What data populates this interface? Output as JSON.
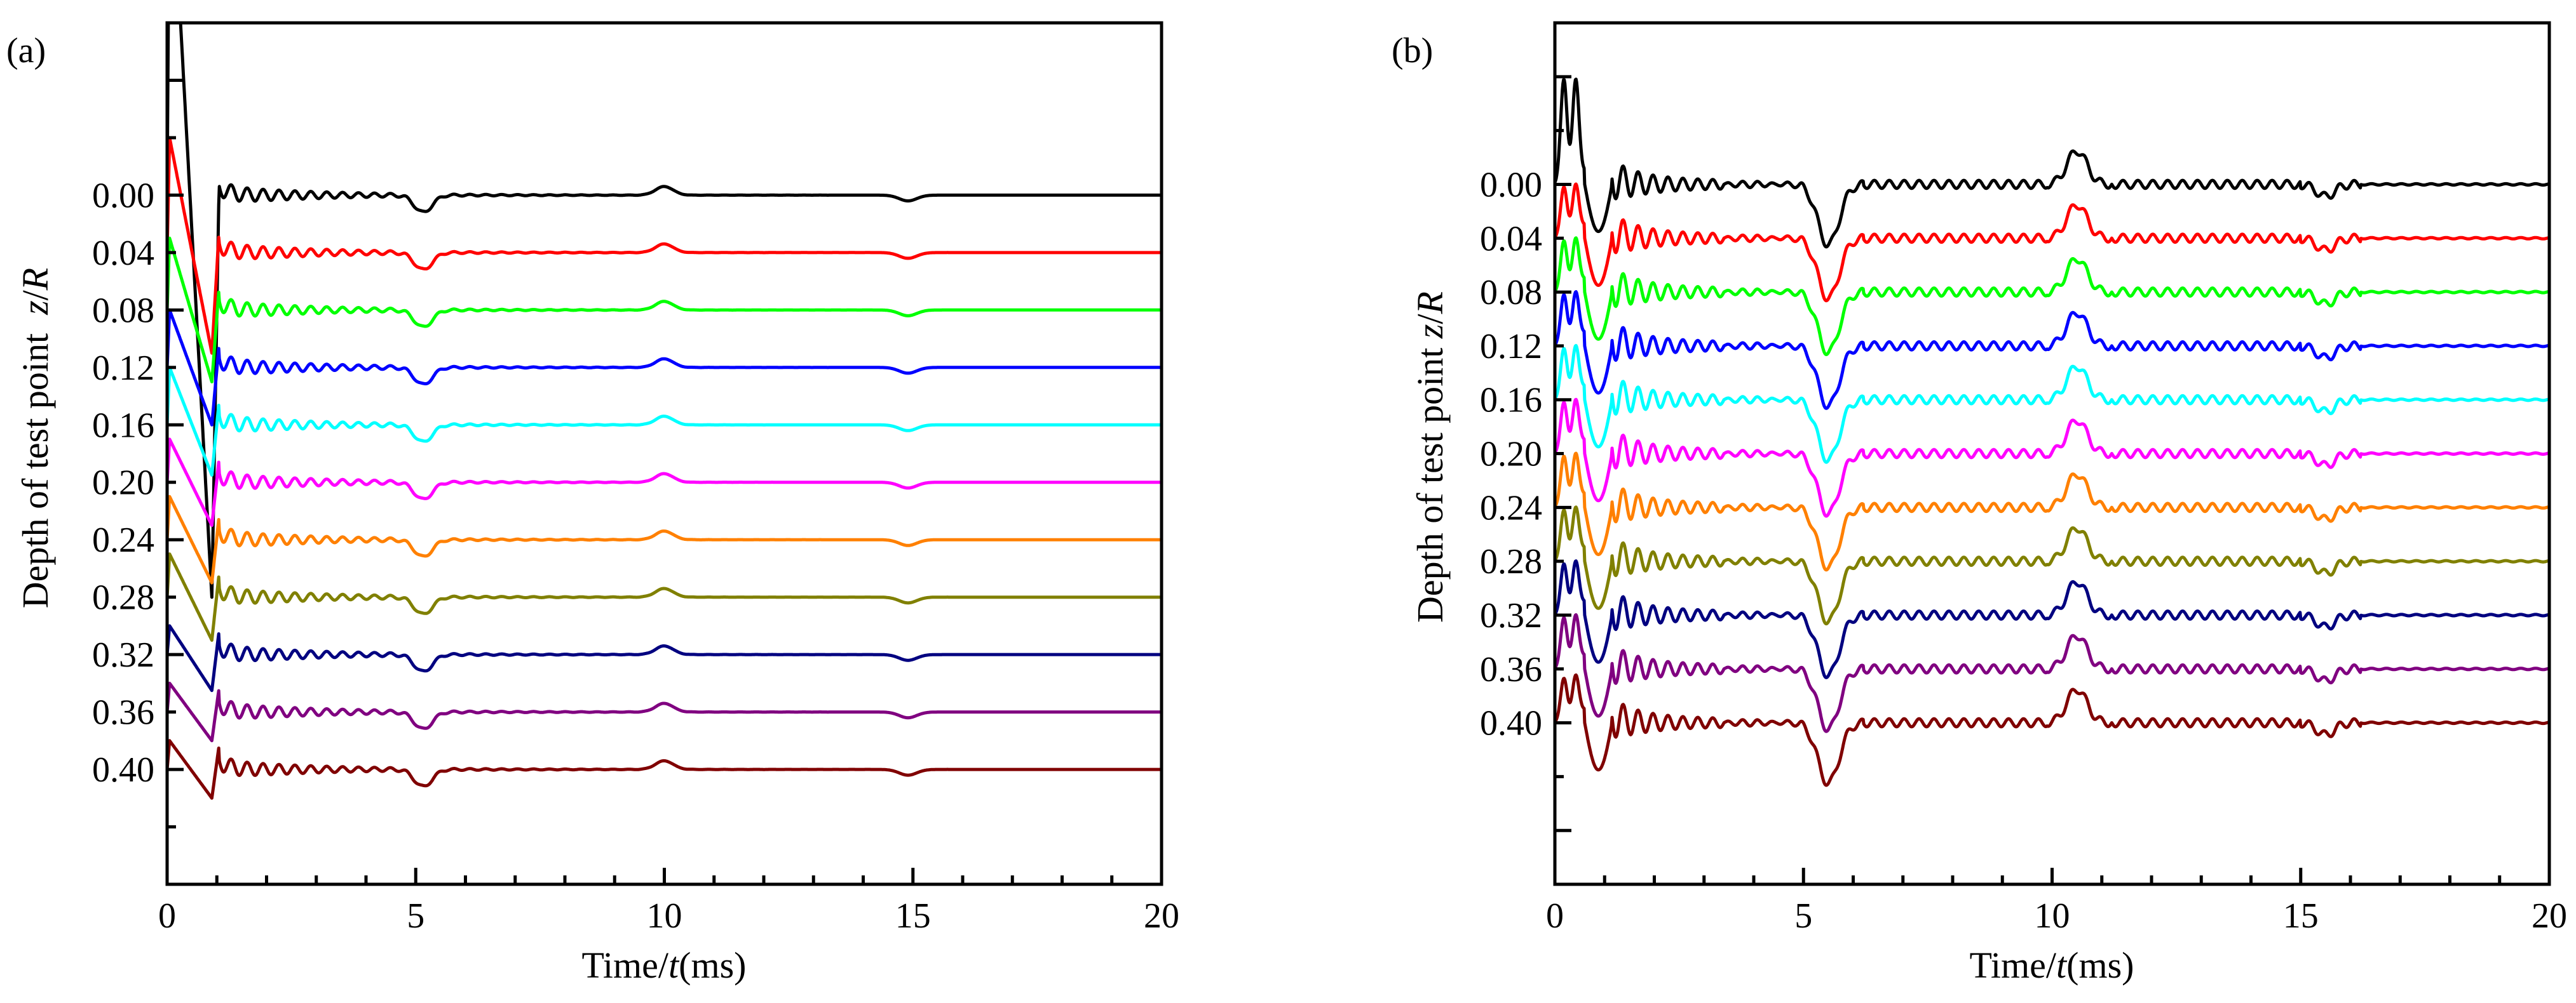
{
  "chart_data": [
    {
      "panel_label": "(a)",
      "type": "line",
      "title": "",
      "xlabel": "Time/t(ms)",
      "ylabel": "Depth of test point  z/R",
      "xlim": [
        0,
        20
      ],
      "ylim": [
        0.48,
        -0.12
      ],
      "x_ticks": [
        "0",
        "5",
        "10",
        "15",
        "20"
      ],
      "grid": false,
      "legend": "none (each trace labelled by its depth on the y axis)",
      "series": [
        {
          "name": "0.00",
          "depth": 0.0,
          "color": "#000000"
        },
        {
          "name": "0.04",
          "depth": 0.04,
          "color": "#ff0000"
        },
        {
          "name": "0.08",
          "depth": 0.08,
          "color": "#00ff00"
        },
        {
          "name": "0.12",
          "depth": 0.12,
          "color": "#0000ff"
        },
        {
          "name": "0.16",
          "depth": 0.16,
          "color": "#00ffff"
        },
        {
          "name": "0.20",
          "depth": 0.2,
          "color": "#ff00ff"
        },
        {
          "name": "0.24",
          "depth": 0.24,
          "color": "#ff8000"
        },
        {
          "name": "0.28",
          "depth": 0.28,
          "color": "#808000"
        },
        {
          "name": "0.32",
          "depth": 0.32,
          "color": "#000080"
        },
        {
          "name": "0.36",
          "depth": 0.36,
          "color": "#800080"
        },
        {
          "name": "0.40",
          "depth": 0.4,
          "color": "#800000"
        }
      ],
      "waveform": {
        "pulse_times_ms": [
          0,
          5,
          10,
          15
        ],
        "first_peak_depth_units": [
          0.26,
          0.08,
          0.05,
          0.04,
          0.04,
          0.03,
          0.03,
          0.03,
          0.02,
          0.02,
          0.02
        ],
        "first_trough_depth_units": [
          0.28,
          0.07,
          0.05,
          0.04,
          0.035,
          0.03,
          0.03,
          0.03,
          0.025,
          0.02,
          0.02
        ],
        "dip_5ms_depth_units": 0.012,
        "bump_10ms_depth_units": 0.006,
        "dip_15ms_depth_units": 0.004
      }
    },
    {
      "panel_label": "(b)",
      "type": "line",
      "title": "",
      "xlabel": "Time/t(ms)",
      "ylabel": "Depth of test point z/R",
      "xlim": [
        0,
        20
      ],
      "ylim": [
        0.52,
        -0.12
      ],
      "x_ticks": [
        "0",
        "5",
        "10",
        "15",
        "20"
      ],
      "grid": false,
      "legend": "none (each trace labelled by its depth on the y axis)",
      "series": [
        {
          "name": "0.00",
          "depth": 0.0,
          "color": "#000000"
        },
        {
          "name": "0.04",
          "depth": 0.04,
          "color": "#ff0000"
        },
        {
          "name": "0.08",
          "depth": 0.08,
          "color": "#00ff00"
        },
        {
          "name": "0.12",
          "depth": 0.12,
          "color": "#0000ff"
        },
        {
          "name": "0.16",
          "depth": 0.16,
          "color": "#00ffff"
        },
        {
          "name": "0.20",
          "depth": 0.2,
          "color": "#ff00ff"
        },
        {
          "name": "0.24",
          "depth": 0.24,
          "color": "#ff8000"
        },
        {
          "name": "0.28",
          "depth": 0.28,
          "color": "#808000"
        },
        {
          "name": "0.32",
          "depth": 0.32,
          "color": "#000080"
        },
        {
          "name": "0.36",
          "depth": 0.36,
          "color": "#800080"
        },
        {
          "name": "0.40",
          "depth": 0.4,
          "color": "#800000"
        }
      ],
      "waveform": {
        "pulse_times_ms": [
          0,
          5.5,
          10.5,
          15.5
        ],
        "first_peak_depth_units": [
          0.075,
          0.035,
          0.035,
          0.035,
          0.035,
          0.035,
          0.035,
          0.035,
          0.035,
          0.035,
          0.03
        ],
        "first_trough_depth_units": 0.035,
        "dip_5ms_depth_units": 0.045,
        "bump_10ms_depth_units": 0.025,
        "dip_15ms_depth_units": 0.009
      }
    }
  ]
}
